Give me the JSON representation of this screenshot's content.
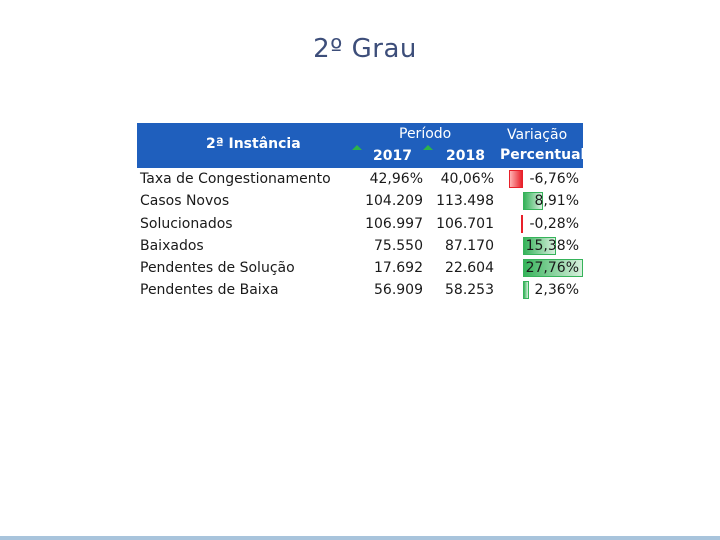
{
  "slide": {
    "title": "2º Grau"
  },
  "table": {
    "header": {
      "instancia": "2ª Instância",
      "periodo": "Período",
      "year1": "2017",
      "year2": "2018",
      "variacao_line1": "Variação",
      "variacao_line2": "Percentual"
    },
    "rows": [
      {
        "label": "Taxa de Congestionamento",
        "v2017": "42,96%",
        "v2018": "40,06%",
        "variacao": "-6,76%",
        "variacao_value": -6.76
      },
      {
        "label": "Casos Novos",
        "v2017": "104.209",
        "v2018": "113.498",
        "variacao": "8,91%",
        "variacao_value": 8.91
      },
      {
        "label": "Solucionados",
        "v2017": "106.997",
        "v2018": "106.701",
        "variacao": "-0,28%",
        "variacao_value": -0.28
      },
      {
        "label": "Baixados",
        "v2017": "75.550",
        "v2018": "87.170",
        "variacao": "15,38%",
        "variacao_value": 15.38
      },
      {
        "label": "Pendentes de Solução",
        "v2017": "17.692",
        "v2018": "22.604",
        "variacao": "27,76%",
        "variacao_value": 27.76
      },
      {
        "label": "Pendentes de Baixa",
        "v2017": "56.909",
        "v2018": "58.253",
        "variacao": "2,36%",
        "variacao_value": 2.36
      }
    ],
    "colors": {
      "header_bg": "#1f5fbd",
      "positive": "#36b35a",
      "negative": "#e8202a",
      "indicator": "#2db34a"
    }
  }
}
